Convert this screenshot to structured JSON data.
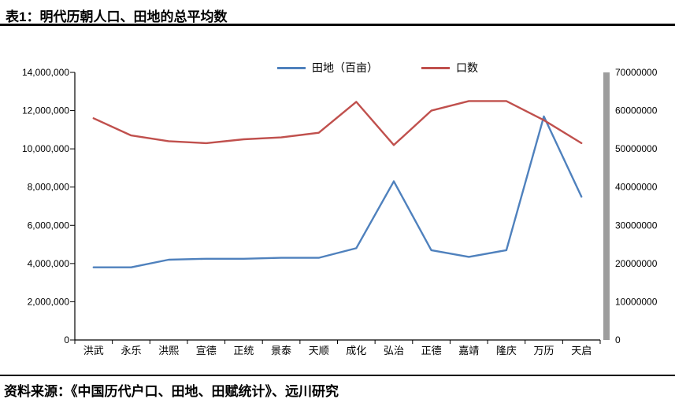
{
  "page": {
    "title": "表1：明代历朝人口、田地的总平均数",
    "source_note": "资料来源：《中国历代户口、田地、田赋统计》、远川研究"
  },
  "chart_data": {
    "type": "line",
    "title": "表1：明代历朝人口、田地的总平均数",
    "categories": [
      "洪武",
      "永乐",
      "洪熙",
      "宣德",
      "正统",
      "景泰",
      "天顺",
      "成化",
      "弘治",
      "正德",
      "嘉靖",
      "隆庆",
      "万历",
      "天启"
    ],
    "series": [
      {
        "name": "田地（百亩）",
        "axis": "left",
        "color": "#4f81bd",
        "values": [
          3800000,
          3800000,
          4200000,
          4250000,
          4250000,
          4300000,
          4300000,
          4800000,
          8300000,
          4700000,
          4350000,
          4700000,
          11700000,
          7500000
        ]
      },
      {
        "name": "口数",
        "axis": "right",
        "color": "#c0504d",
        "values": [
          58000000,
          53500000,
          52000000,
          51500000,
          52500000,
          53000000,
          54200000,
          62300000,
          51000000,
          60000000,
          62500000,
          62500000,
          57500000,
          51500000
        ]
      }
    ],
    "left_axis": {
      "min": 0,
      "max": 14000000,
      "step": 2000000,
      "tick_format": "comma"
    },
    "right_axis": {
      "min": 0,
      "max": 70000000,
      "step": 10000000,
      "tick_format": "plain"
    },
    "legend_position": "top",
    "grid": false
  }
}
